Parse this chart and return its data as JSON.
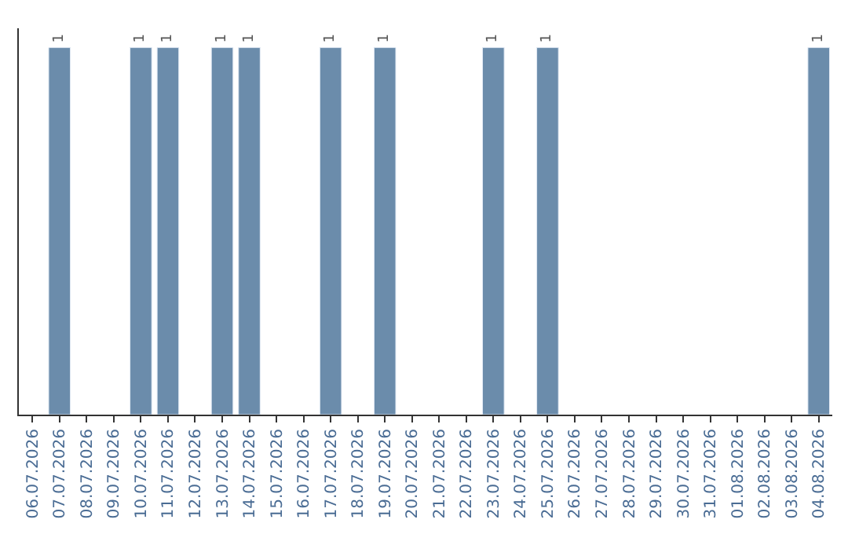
{
  "chart_data": {
    "type": "bar",
    "categories": [
      "06.07.2026",
      "07.07.2026",
      "08.07.2026",
      "09.07.2026",
      "10.07.2026",
      "11.07.2026",
      "12.07.2026",
      "13.07.2026",
      "14.07.2026",
      "15.07.2026",
      "16.07.2026",
      "17.07.2026",
      "18.07.2026",
      "19.07.2026",
      "20.07.2026",
      "21.07.2026",
      "22.07.2026",
      "23.07.2026",
      "24.07.2026",
      "25.07.2026",
      "26.07.2026",
      "27.07.2026",
      "28.07.2026",
      "29.07.2026",
      "30.07.2026",
      "31.07.2026",
      "01.08.2026",
      "02.08.2026",
      "03.08.2026",
      "04.08.2026"
    ],
    "values": [
      null,
      1,
      null,
      null,
      1,
      1,
      null,
      1,
      1,
      null,
      null,
      1,
      null,
      1,
      null,
      null,
      null,
      1,
      null,
      1,
      null,
      null,
      null,
      null,
      null,
      null,
      null,
      null,
      null,
      1
    ],
    "color": "#6b8cab",
    "data_labels": true,
    "legend": false,
    "tick_labels": "x"
  }
}
